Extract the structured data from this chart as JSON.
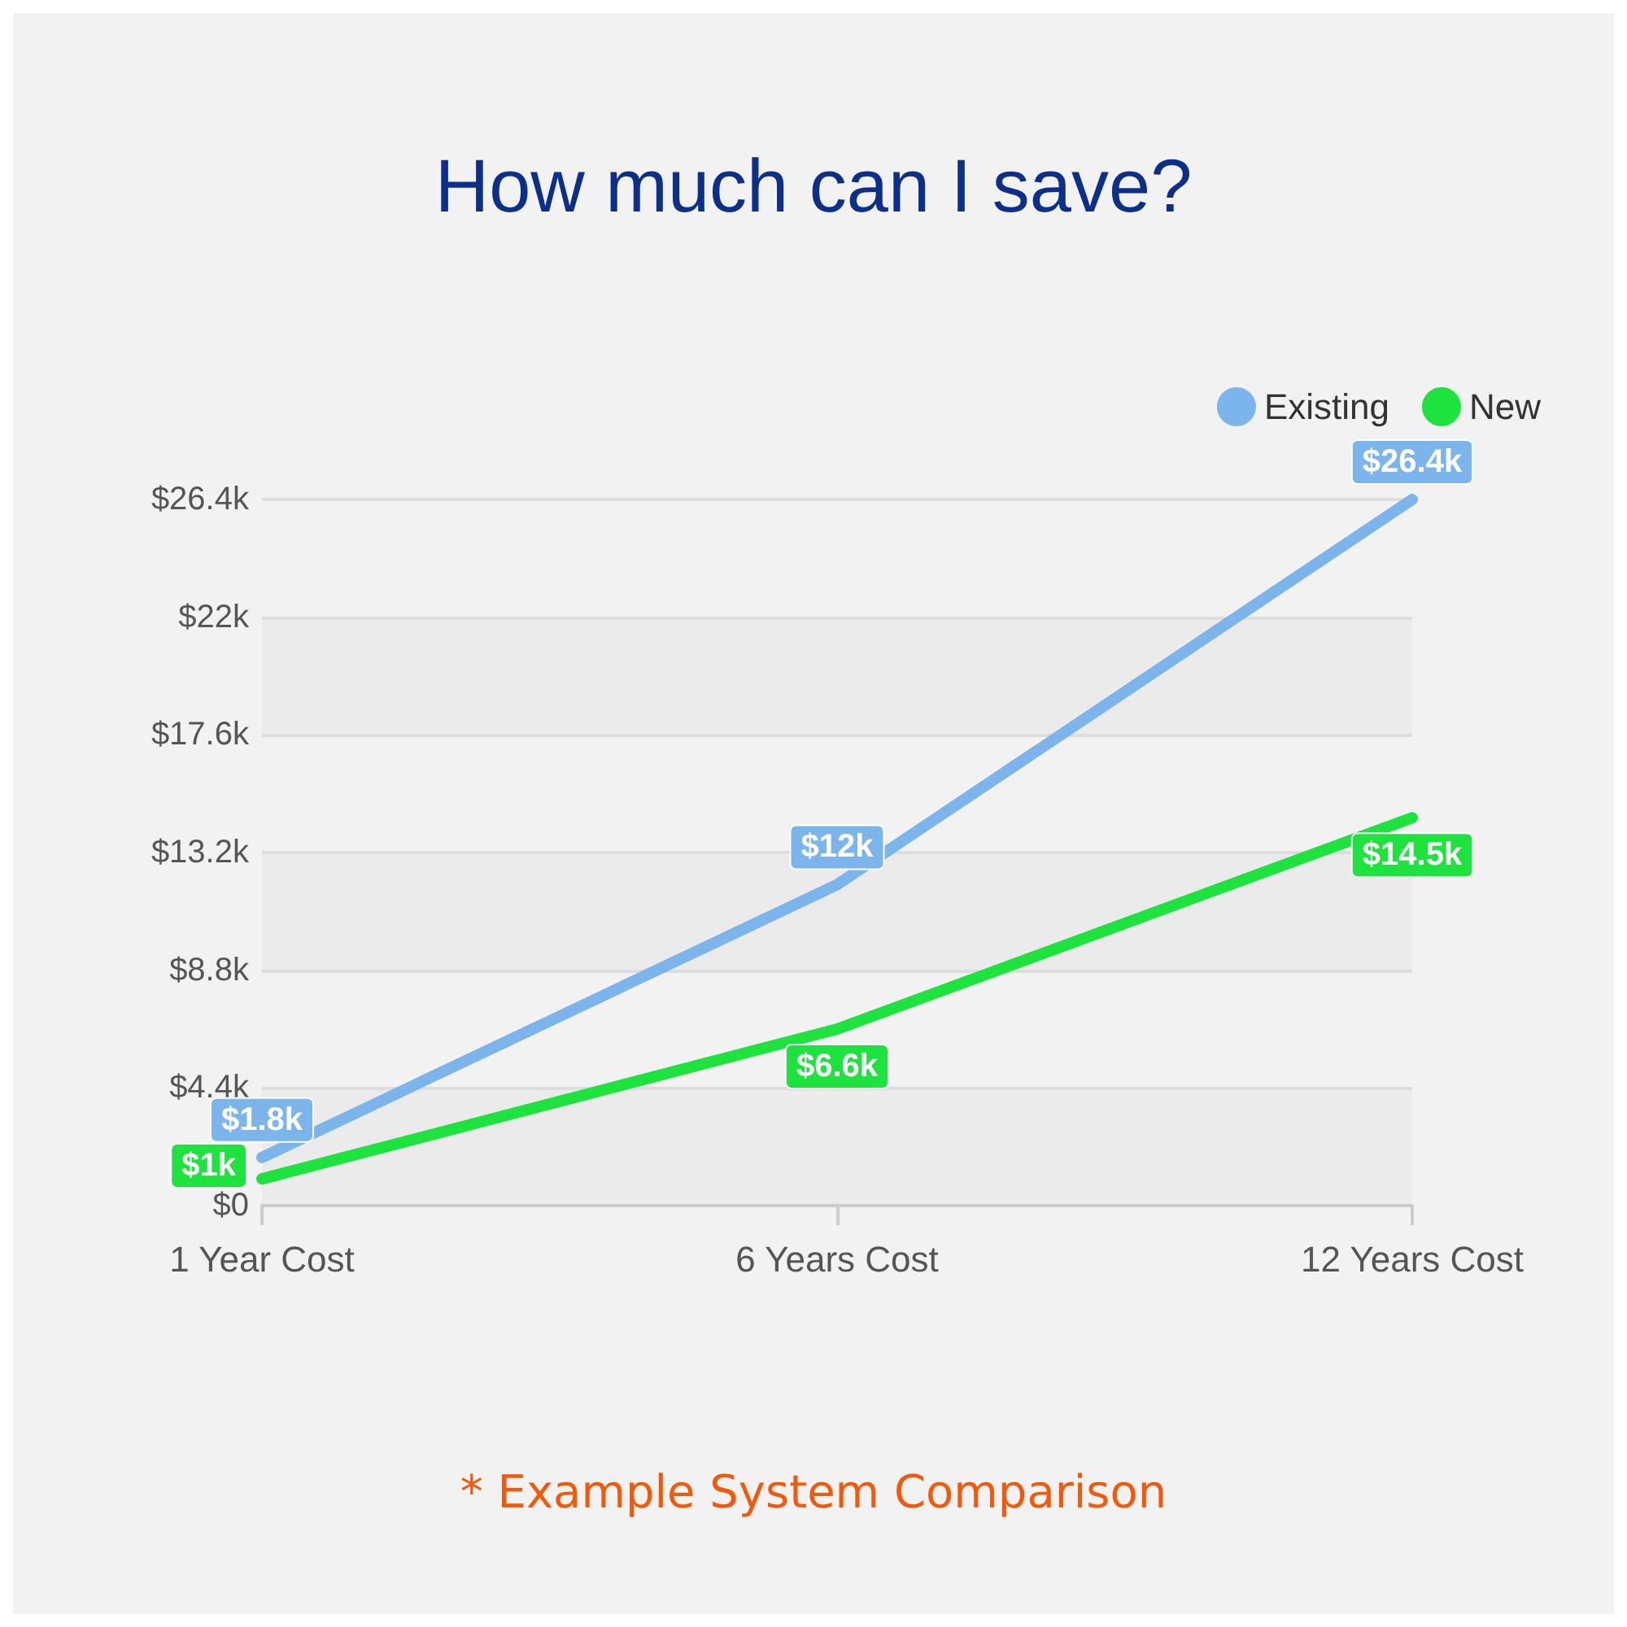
{
  "chart_data": {
    "type": "line",
    "title": "How much can I save?",
    "annotations": [
      "* Example System Comparison"
    ],
    "categories": [
      "1 Year Cost",
      "6 Years Cost",
      "12 Years Cost"
    ],
    "series": [
      {
        "name": "Existing",
        "color": "#7cb5ec",
        "values": [
          1.8,
          12,
          26.4
        ],
        "value_labels": [
          "$1.8k",
          "$12k",
          "$26.4k"
        ]
      },
      {
        "name": "New",
        "color": "#1ee33f",
        "values": [
          1,
          6.6,
          14.5
        ],
        "value_labels": [
          "$1k",
          "$6.6k",
          "$14.5k"
        ]
      }
    ],
    "ylim": [
      0,
      26.4
    ],
    "yticks": [
      {
        "value": 0,
        "label": "$0"
      },
      {
        "value": 4.4,
        "label": "$4.4k"
      },
      {
        "value": 8.8,
        "label": "$8.8k"
      },
      {
        "value": 13.2,
        "label": "$13.2k"
      },
      {
        "value": 17.6,
        "label": "$17.6k"
      },
      {
        "value": 22,
        "label": "$22k"
      },
      {
        "value": 26.4,
        "label": "$26.4k"
      }
    ],
    "grid": "y",
    "legend": "top right",
    "marker": "none",
    "line_style": "solid"
  }
}
